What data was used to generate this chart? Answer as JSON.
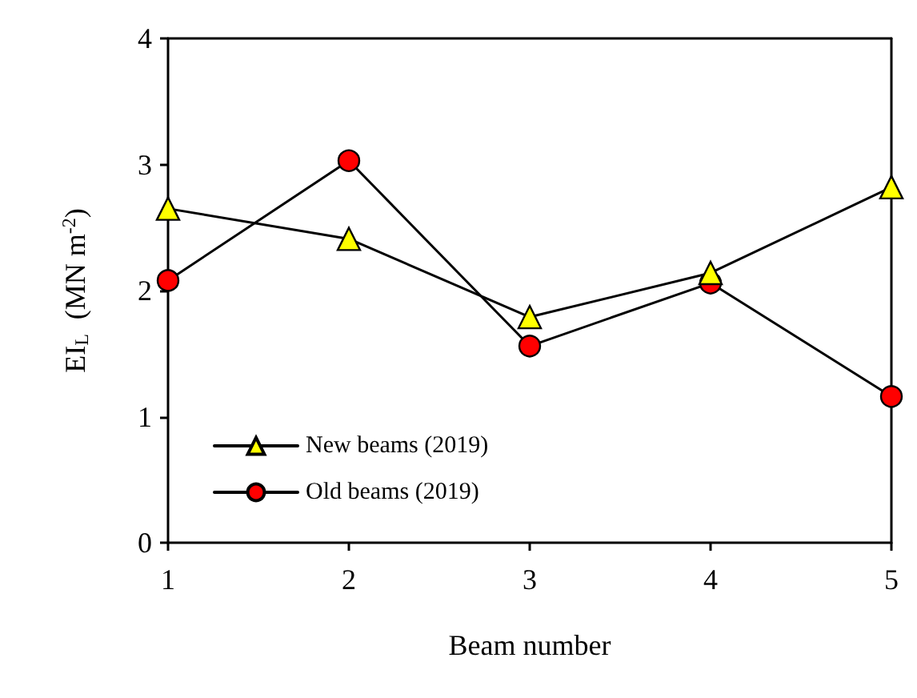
{
  "chart_data": {
    "type": "line",
    "xlabel": "Beam number",
    "ylabel": "EI$_{L}$  (MN m$^{-2}$)",
    "x": [
      1,
      2,
      3,
      4,
      5
    ],
    "xlim": [
      1,
      5
    ],
    "xticks": [
      1,
      2,
      3,
      4,
      5
    ],
    "ylim": [
      0,
      4
    ],
    "yticks": [
      0,
      1,
      2,
      3,
      4
    ],
    "grid": false,
    "legend": "bottom left",
    "line_style": "solid",
    "series": [
      {
        "name": "New beams (2019)",
        "color": "#ffff00",
        "marker": "triangle",
        "values": [
          2.65,
          2.41,
          1.79,
          2.14,
          2.82
        ]
      },
      {
        "name": "Old beams (2019)",
        "color": "#ff0000",
        "marker": "circle",
        "values": [
          2.08,
          3.03,
          1.56,
          2.06,
          1.16
        ]
      }
    ]
  }
}
